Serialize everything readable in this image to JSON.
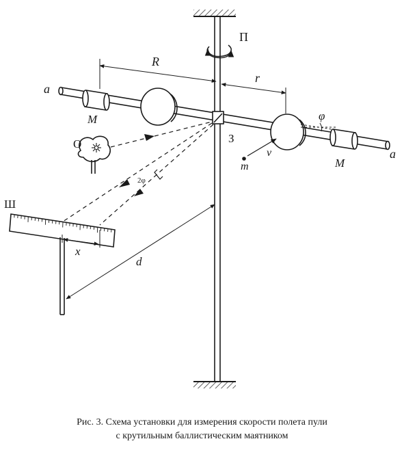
{
  "figure": {
    "labels": {
      "axis_label": "П",
      "mirror_label": "З",
      "source_label": "О",
      "scale_label": "Ш",
      "rod_end_left": "a",
      "rod_end_right": "a",
      "weight_left": "M",
      "weight_right": "M",
      "arm_R": "R",
      "arm_r": "r",
      "angle_phi": "φ",
      "angle_2phi": "2φ",
      "bullet_mass": "m",
      "velocity": "v",
      "deflection_x": "x",
      "distance_d": "d"
    }
  },
  "caption": {
    "line1": "Рис. 3. Схема установки для измерения скорости полета пули",
    "line2": "с крутильным баллистическим маятником"
  },
  "colors": {
    "ink": "#1a1a1a",
    "paper": "#ffffff"
  }
}
